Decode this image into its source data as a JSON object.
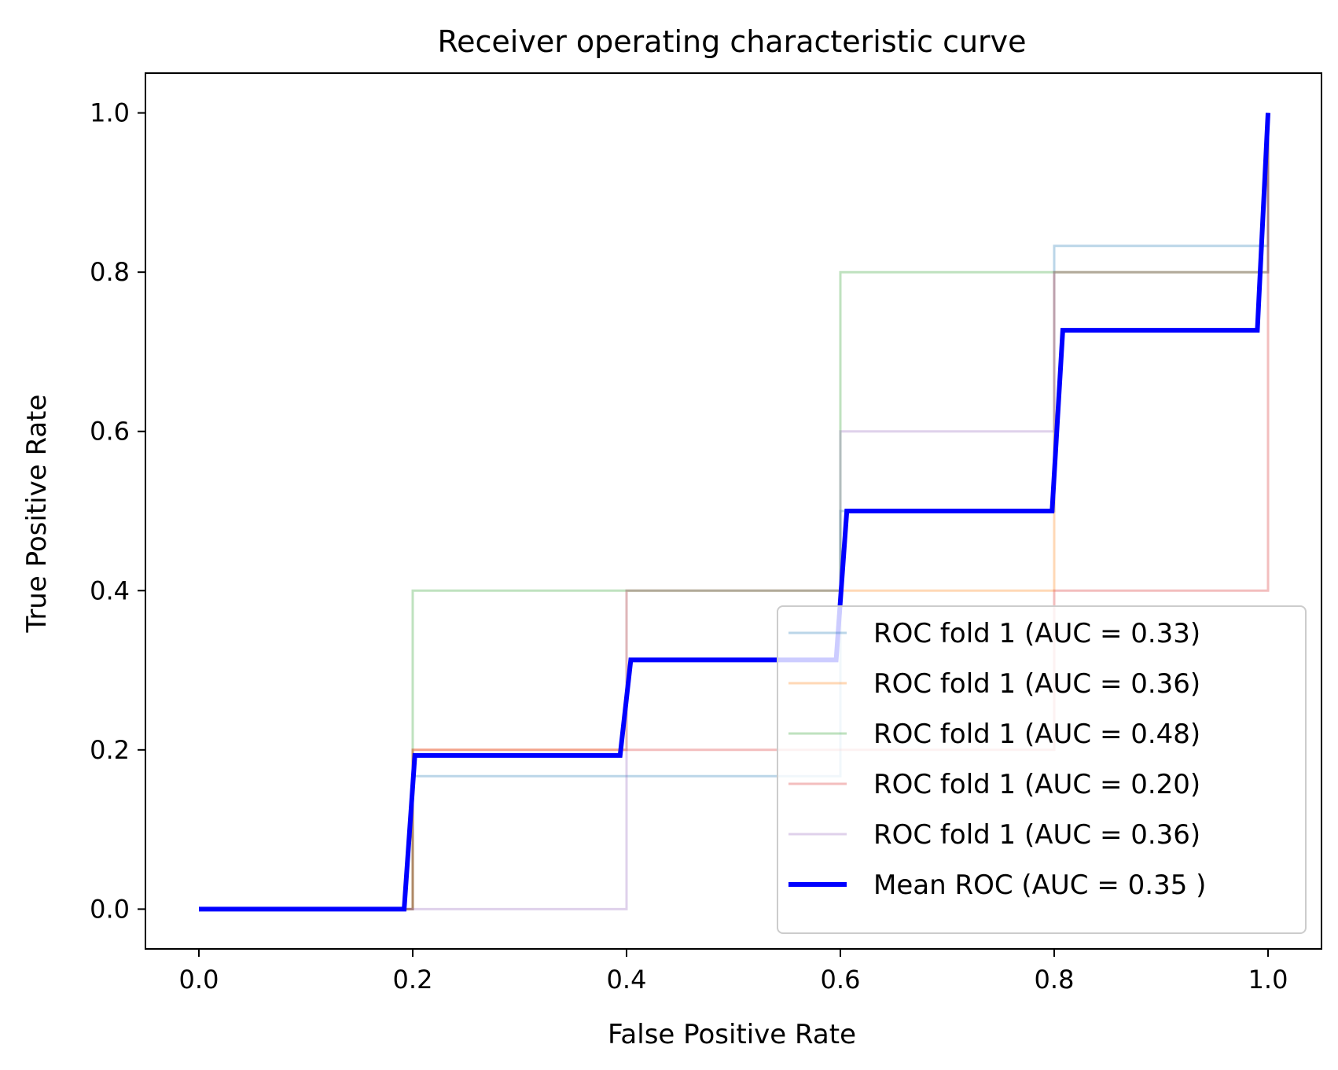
{
  "chart_data": {
    "type": "line",
    "title": "Receiver operating characteristic curve",
    "xlabel": "False Positive Rate",
    "ylabel": "True Positive Rate",
    "xlim": [
      -0.05,
      1.05
    ],
    "ylim": [
      -0.05,
      1.05
    ],
    "xticks": [
      "0.0",
      "0.2",
      "0.4",
      "0.6",
      "0.8",
      "1.0"
    ],
    "yticks": [
      "0.0",
      "0.2",
      "0.4",
      "0.6",
      "0.8",
      "1.0"
    ],
    "grid": false,
    "legend_position": "lower-right",
    "series": [
      {
        "name": "ROC fold 1 (AUC = 0.33)",
        "color": "#1f77b4",
        "opacity": 0.3,
        "x": [
          0.0,
          0.2,
          0.2,
          0.6,
          0.6,
          0.8,
          0.8,
          1.0,
          1.0
        ],
        "y": [
          0.0,
          0.0,
          0.167,
          0.167,
          0.5,
          0.5,
          0.833,
          0.833,
          1.0
        ]
      },
      {
        "name": "ROC fold 1 (AUC = 0.36)",
        "color": "#ff7f0e",
        "opacity": 0.3,
        "x": [
          0.0,
          0.2,
          0.2,
          0.4,
          0.4,
          0.8,
          0.8,
          1.0,
          1.0
        ],
        "y": [
          0.0,
          0.0,
          0.2,
          0.2,
          0.4,
          0.4,
          0.8,
          0.8,
          1.0
        ]
      },
      {
        "name": "ROC fold 1 (AUC = 0.48)",
        "color": "#2ca02c",
        "opacity": 0.3,
        "x": [
          0.0,
          0.2,
          0.2,
          0.6,
          0.6,
          1.0,
          1.0
        ],
        "y": [
          0.0,
          0.0,
          0.4,
          0.4,
          0.8,
          0.8,
          1.0
        ]
      },
      {
        "name": "ROC fold 1 (AUC = 0.20)",
        "color": "#d62728",
        "opacity": 0.3,
        "x": [
          0.0,
          0.2,
          0.2,
          0.8,
          0.8,
          1.0,
          1.0
        ],
        "y": [
          0.0,
          0.0,
          0.2,
          0.2,
          0.4,
          0.4,
          1.0
        ]
      },
      {
        "name": "ROC fold 1 (AUC = 0.36)",
        "color": "#9467bd",
        "opacity": 0.3,
        "x": [
          0.0,
          0.4,
          0.4,
          0.6,
          0.6,
          0.8,
          0.8,
          1.0,
          1.0
        ],
        "y": [
          0.0,
          0.0,
          0.4,
          0.4,
          0.6,
          0.6,
          0.8,
          0.8,
          1.0
        ]
      },
      {
        "name": "Mean ROC (AUC = 0.35 )",
        "color": "#0000ff",
        "opacity": 1.0,
        "bold": true,
        "x": [
          0.0,
          0.192,
          0.202,
          0.394,
          0.404,
          0.596,
          0.606,
          0.798,
          0.808,
          0.99,
          1.0
        ],
        "y": [
          0.0,
          0.0,
          0.193,
          0.193,
          0.313,
          0.313,
          0.5,
          0.5,
          0.727,
          0.727,
          1.0
        ]
      }
    ]
  }
}
